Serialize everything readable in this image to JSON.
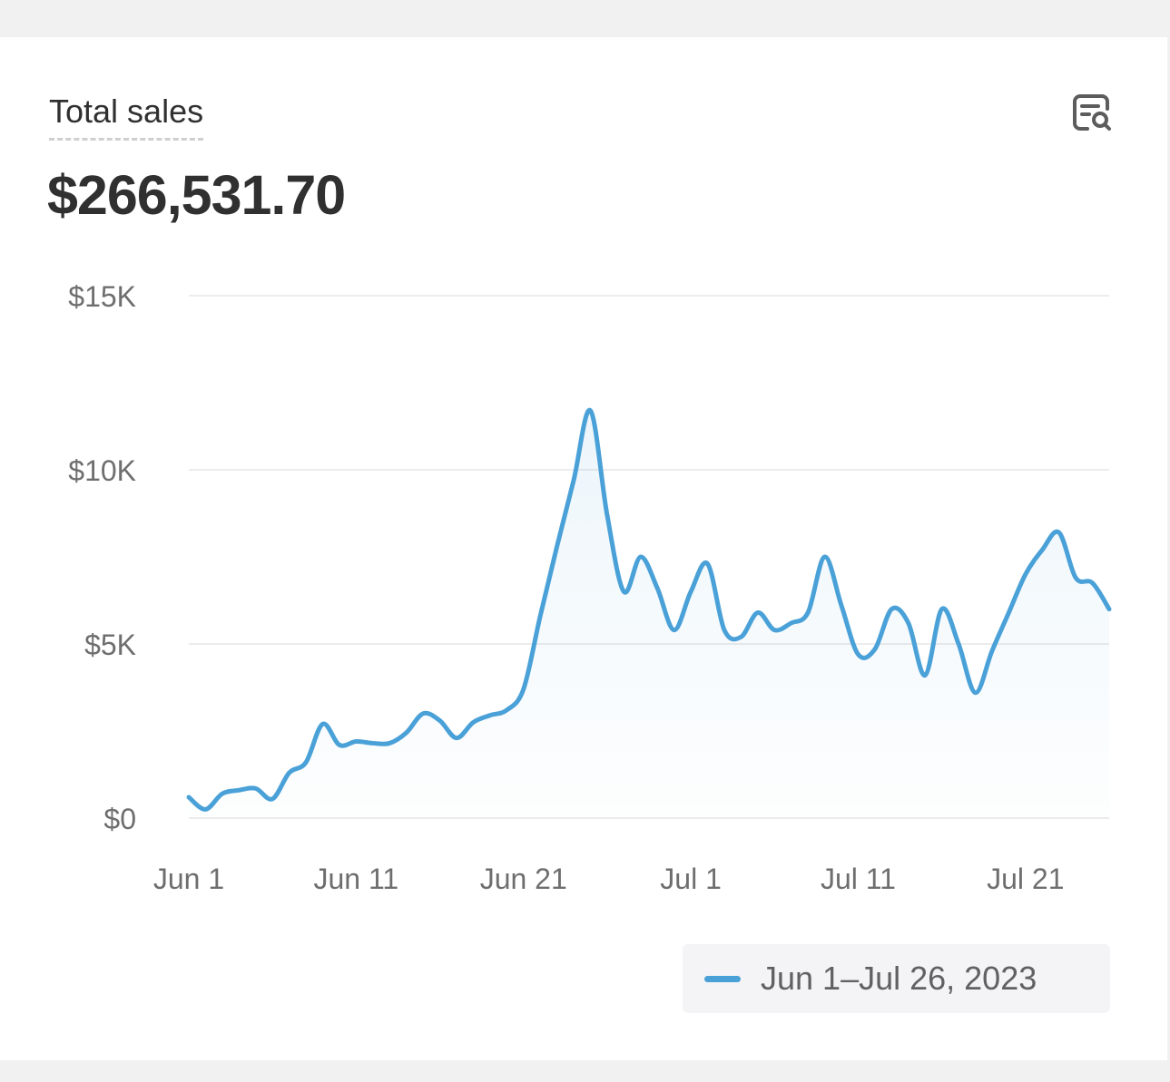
{
  "card": {
    "title": "Total sales",
    "total_value": "$266,531.70",
    "report_icon": "report-search-icon"
  },
  "legend": {
    "label": "Jun 1–Jul 26, 2023"
  },
  "colors": {
    "series": "#4aa1d8",
    "grid": "#ececec",
    "axis_text": "#6e6e6e"
  },
  "chart_data": {
    "type": "line",
    "ylim": [
      0,
      15000
    ],
    "y_ticks": [
      0,
      5000,
      10000,
      15000
    ],
    "y_tick_labels": [
      "$0",
      "$5K",
      "$10K",
      "$15K"
    ],
    "x_tick_indices": [
      0,
      10,
      20,
      30,
      40,
      50
    ],
    "x_tick_labels": [
      "Jun 1",
      "Jun 11",
      "Jun 21",
      "Jul 1",
      "Jul 11",
      "Jul 21"
    ],
    "grid": true,
    "series": [
      {
        "name": "Jun 1–Jul 26, 2023",
        "x": [
          "Jun 1",
          "Jun 2",
          "Jun 3",
          "Jun 4",
          "Jun 5",
          "Jun 6",
          "Jun 7",
          "Jun 8",
          "Jun 9",
          "Jun 10",
          "Jun 11",
          "Jun 12",
          "Jun 13",
          "Jun 14",
          "Jun 15",
          "Jun 16",
          "Jun 17",
          "Jun 18",
          "Jun 19",
          "Jun 20",
          "Jun 21",
          "Jun 22",
          "Jun 23",
          "Jun 24",
          "Jun 25",
          "Jun 26",
          "Jun 27",
          "Jun 28",
          "Jun 29",
          "Jun 30",
          "Jul 1",
          "Jul 2",
          "Jul 3",
          "Jul 4",
          "Jul 5",
          "Jul 6",
          "Jul 7",
          "Jul 8",
          "Jul 9",
          "Jul 10",
          "Jul 11",
          "Jul 12",
          "Jul 13",
          "Jul 14",
          "Jul 15",
          "Jul 16",
          "Jul 17",
          "Jul 18",
          "Jul 19",
          "Jul 20",
          "Jul 21",
          "Jul 22",
          "Jul 23",
          "Jul 24",
          "Jul 25",
          "Jul 26"
        ],
        "values": [
          600,
          250,
          700,
          800,
          850,
          550,
          1300,
          1600,
          2700,
          2100,
          2200,
          2150,
          2150,
          2450,
          3000,
          2800,
          2300,
          2750,
          2950,
          3100,
          3700,
          5800,
          7800,
          9700,
          11700,
          8700,
          6500,
          7500,
          6600,
          5400,
          6500,
          7300,
          5400,
          5200,
          5900,
          5400,
          5600,
          5900,
          7500,
          6100,
          4700,
          4850,
          6000,
          5600,
          4100,
          6000,
          5000,
          3600,
          4800,
          5900,
          7000,
          7700,
          8200,
          6900,
          6750,
          6000
        ]
      }
    ]
  }
}
